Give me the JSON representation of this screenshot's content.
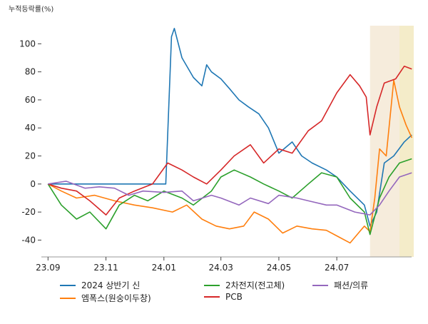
{
  "chart_data": {
    "type": "line",
    "ylabel": "누적등락률(%)",
    "x_ticks": [
      "23.09",
      "23.11",
      "24.01",
      "24.03",
      "24.05",
      "24.07"
    ],
    "y_ticks": [
      -40,
      -20,
      0,
      20,
      40,
      60,
      80,
      100
    ],
    "ylim": [
      -52,
      118
    ],
    "x_range": [
      "2023-08-25",
      "2024-09-20"
    ],
    "grid": false,
    "legend_position": "bottom",
    "highlight_regions": [
      {
        "from": "2024-08-05",
        "to": "2024-09-20",
        "color": "#f5e9d6"
      },
      {
        "from": "2024-09-05",
        "to": "2024-09-20",
        "color": "#f3ecc6"
      }
    ],
    "series": [
      {
        "name": "2024 상반기 신",
        "color": "#1f77b4",
        "points": [
          [
            "2023-09-01",
            0
          ],
          [
            "2023-10-01",
            0
          ],
          [
            "2023-11-01",
            0
          ],
          [
            "2023-12-01",
            0
          ],
          [
            "2024-01-02",
            0
          ],
          [
            "2024-01-03",
            0
          ],
          [
            "2024-01-09",
            105
          ],
          [
            "2024-01-12",
            111
          ],
          [
            "2024-01-20",
            90
          ],
          [
            "2024-02-01",
            76
          ],
          [
            "2024-02-10",
            70
          ],
          [
            "2024-02-15",
            85
          ],
          [
            "2024-02-20",
            80
          ],
          [
            "2024-03-01",
            75
          ],
          [
            "2024-03-10",
            68
          ],
          [
            "2024-03-20",
            60
          ],
          [
            "2024-03-30",
            55
          ],
          [
            "2024-04-10",
            50
          ],
          [
            "2024-04-20",
            40
          ],
          [
            "2024-05-01",
            22
          ],
          [
            "2024-05-15",
            30
          ],
          [
            "2024-05-25",
            20
          ],
          [
            "2024-06-05",
            15
          ],
          [
            "2024-06-20",
            10
          ],
          [
            "2024-07-01",
            5
          ],
          [
            "2024-07-15",
            -5
          ],
          [
            "2024-07-30",
            -15
          ],
          [
            "2024-08-05",
            -30
          ],
          [
            "2024-08-12",
            -20
          ],
          [
            "2024-08-20",
            15
          ],
          [
            "2024-08-30",
            20
          ],
          [
            "2024-09-10",
            30
          ],
          [
            "2024-09-18",
            35
          ]
        ]
      },
      {
        "name": "엠폭스(원숭이두창)",
        "color": "#ff7f0e",
        "points": [
          [
            "2023-09-01",
            0
          ],
          [
            "2023-09-15",
            -5
          ],
          [
            "2023-10-01",
            -10
          ],
          [
            "2023-10-20",
            -8
          ],
          [
            "2023-11-10",
            -12
          ],
          [
            "2023-12-01",
            -15
          ],
          [
            "2023-12-20",
            -17
          ],
          [
            "2024-01-10",
            -20
          ],
          [
            "2024-01-25",
            -15
          ],
          [
            "2024-02-10",
            -25
          ],
          [
            "2024-02-25",
            -30
          ],
          [
            "2024-03-10",
            -32
          ],
          [
            "2024-03-25",
            -30
          ],
          [
            "2024-04-05",
            -20
          ],
          [
            "2024-04-20",
            -25
          ],
          [
            "2024-05-05",
            -35
          ],
          [
            "2024-05-20",
            -30
          ],
          [
            "2024-06-05",
            -32
          ],
          [
            "2024-06-20",
            -33
          ],
          [
            "2024-07-01",
            -37
          ],
          [
            "2024-07-15",
            -42
          ],
          [
            "2024-07-30",
            -30
          ],
          [
            "2024-08-05",
            -34
          ],
          [
            "2024-08-10",
            -10
          ],
          [
            "2024-08-15",
            25
          ],
          [
            "2024-08-22",
            20
          ],
          [
            "2024-08-30",
            74
          ],
          [
            "2024-09-05",
            55
          ],
          [
            "2024-09-12",
            42
          ],
          [
            "2024-09-18",
            33
          ]
        ]
      },
      {
        "name": "2차전지(전고체)",
        "color": "#2ca02c",
        "points": [
          [
            "2023-09-01",
            0
          ],
          [
            "2023-09-15",
            -15
          ],
          [
            "2023-10-01",
            -25
          ],
          [
            "2023-10-15",
            -20
          ],
          [
            "2023-11-01",
            -32
          ],
          [
            "2023-11-15",
            -15
          ],
          [
            "2023-12-01",
            -8
          ],
          [
            "2023-12-15",
            -12
          ],
          [
            "2024-01-01",
            -5
          ],
          [
            "2024-01-20",
            -10
          ],
          [
            "2024-02-01",
            -15
          ],
          [
            "2024-02-20",
            -5
          ],
          [
            "2024-03-01",
            5
          ],
          [
            "2024-03-15",
            10
          ],
          [
            "2024-04-01",
            5
          ],
          [
            "2024-04-15",
            0
          ],
          [
            "2024-05-01",
            -5
          ],
          [
            "2024-05-15",
            -10
          ],
          [
            "2024-06-01",
            0
          ],
          [
            "2024-06-15",
            8
          ],
          [
            "2024-07-01",
            5
          ],
          [
            "2024-07-15",
            -10
          ],
          [
            "2024-07-30",
            -20
          ],
          [
            "2024-08-05",
            -36
          ],
          [
            "2024-08-15",
            -10
          ],
          [
            "2024-08-25",
            5
          ],
          [
            "2024-09-05",
            15
          ],
          [
            "2024-09-18",
            18
          ]
        ]
      },
      {
        "name": "PCB",
        "color": "#d62728",
        "points": [
          [
            "2023-09-01",
            0
          ],
          [
            "2023-09-15",
            -3
          ],
          [
            "2023-10-01",
            -5
          ],
          [
            "2023-10-15",
            -12
          ],
          [
            "2023-11-01",
            -22
          ],
          [
            "2023-11-15",
            -10
          ],
          [
            "2023-12-01",
            -5
          ],
          [
            "2023-12-20",
            0
          ],
          [
            "2024-01-05",
            15
          ],
          [
            "2024-01-20",
            10
          ],
          [
            "2024-02-01",
            5
          ],
          [
            "2024-02-15",
            0
          ],
          [
            "2024-03-01",
            10
          ],
          [
            "2024-03-15",
            20
          ],
          [
            "2024-04-01",
            28
          ],
          [
            "2024-04-15",
            15
          ],
          [
            "2024-05-01",
            25
          ],
          [
            "2024-05-15",
            22
          ],
          [
            "2024-06-01",
            38
          ],
          [
            "2024-06-15",
            45
          ],
          [
            "2024-07-01",
            65
          ],
          [
            "2024-07-15",
            78
          ],
          [
            "2024-07-25",
            70
          ],
          [
            "2024-08-01",
            62
          ],
          [
            "2024-08-05",
            35
          ],
          [
            "2024-08-12",
            55
          ],
          [
            "2024-08-20",
            72
          ],
          [
            "2024-09-01",
            75
          ],
          [
            "2024-09-10",
            84
          ],
          [
            "2024-09-18",
            82
          ]
        ]
      },
      {
        "name": "패션/의류",
        "color": "#9467bd",
        "points": [
          [
            "2023-09-01",
            0
          ],
          [
            "2023-09-20",
            2
          ],
          [
            "2023-10-10",
            -3
          ],
          [
            "2023-10-25",
            -2
          ],
          [
            "2023-11-10",
            -3
          ],
          [
            "2023-11-25",
            -8
          ],
          [
            "2023-12-10",
            -5
          ],
          [
            "2024-01-01",
            -6
          ],
          [
            "2024-01-20",
            -5
          ],
          [
            "2024-02-01",
            -12
          ],
          [
            "2024-02-20",
            -8
          ],
          [
            "2024-03-01",
            -10
          ],
          [
            "2024-03-20",
            -15
          ],
          [
            "2024-04-01",
            -10
          ],
          [
            "2024-04-20",
            -14
          ],
          [
            "2024-05-01",
            -8
          ],
          [
            "2024-05-20",
            -10
          ],
          [
            "2024-06-01",
            -12
          ],
          [
            "2024-06-20",
            -15
          ],
          [
            "2024-07-01",
            -15
          ],
          [
            "2024-07-20",
            -20
          ],
          [
            "2024-08-05",
            -22
          ],
          [
            "2024-08-15",
            -15
          ],
          [
            "2024-08-25",
            -5
          ],
          [
            "2024-09-05",
            5
          ],
          [
            "2024-09-18",
            8
          ]
        ]
      }
    ]
  }
}
